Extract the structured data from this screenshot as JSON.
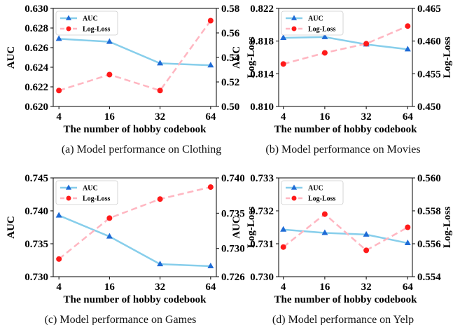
{
  "colors": {
    "auc": "#87ceeb",
    "auc_marker": "#1e6bd6",
    "logloss": "#ffb6c1",
    "logloss_marker": "#ff1a1a"
  },
  "chart_data": [
    {
      "type": "line",
      "caption": "(a)  Model performance on Clothing",
      "xlabel": "The number of hobby codebook",
      "ylabel_left": "AUC",
      "ylabel_right": "Log-Loss",
      "categories": [
        "4",
        "16",
        "32",
        "64"
      ],
      "ylim_left": [
        0.62,
        0.63
      ],
      "yticks_left": [
        "0.620",
        "0.622",
        "0.624",
        "0.626",
        "0.628",
        "0.630"
      ],
      "ylim_right": [
        0.5,
        0.58
      ],
      "yticks_right": [
        "0.50",
        "0.52",
        "0.54",
        "0.56",
        "0.58"
      ],
      "legend": [
        "AUC",
        "Log-Loss"
      ],
      "legend_position": "top-left",
      "series": [
        {
          "name": "AUC",
          "axis": "left",
          "values": [
            0.6269,
            0.6266,
            0.6244,
            0.6242
          ]
        },
        {
          "name": "Log-Loss",
          "axis": "right",
          "values": [
            0.513,
            0.526,
            0.513,
            0.57
          ]
        }
      ]
    },
    {
      "type": "line",
      "caption": "(b)  Model performance on Movies",
      "xlabel": "The number of hobby codebook",
      "ylabel_left": "AUC",
      "ylabel_right": "Log-Loss",
      "categories": [
        "4",
        "16",
        "32",
        "64"
      ],
      "ylim_left": [
        0.81,
        0.822
      ],
      "yticks_left": [
        "0.810",
        "0.814",
        "0.818",
        "0.822"
      ],
      "ylim_right": [
        0.45,
        0.465
      ],
      "yticks_right": [
        "0.450",
        "0.455",
        "0.460",
        "0.465"
      ],
      "legend": [
        "AUC",
        "Log-Loss"
      ],
      "legend_position": "top-left",
      "series": [
        {
          "name": "AUC",
          "axis": "left",
          "values": [
            0.8184,
            0.8185,
            0.8176,
            0.817
          ]
        },
        {
          "name": "Log-Loss",
          "axis": "right",
          "values": [
            0.4565,
            0.4582,
            0.4596,
            0.4623
          ]
        }
      ]
    },
    {
      "type": "line",
      "caption": "(c)  Model performance on Games",
      "xlabel": "The number of hobby codebook",
      "ylabel_left": "AUC",
      "ylabel_right": "Log-Loss",
      "categories": [
        "4",
        "16",
        "32",
        "64"
      ],
      "ylim_left": [
        0.73,
        0.745
      ],
      "yticks_left": [
        "0.730",
        "0.735",
        "0.740",
        "0.745"
      ],
      "ylim_right": [
        0.726,
        0.74
      ],
      "yticks_right": [
        "0.726",
        "0.730",
        "0.735",
        "0.740"
      ],
      "legend": [
        "AUC",
        "Log-Loss"
      ],
      "legend_position": "top-left",
      "series": [
        {
          "name": "AUC",
          "axis": "left",
          "values": [
            0.7393,
            0.7361,
            0.7319,
            0.7316
          ]
        },
        {
          "name": "Log-Loss",
          "axis": "right",
          "values": [
            0.7285,
            0.7343,
            0.737,
            0.7387
          ]
        }
      ]
    },
    {
      "type": "line",
      "caption": "(d)  Model performance on Yelp",
      "xlabel": "The number of hobby codebook",
      "ylabel_left": "AUC",
      "ylabel_right": "Log-Loss",
      "categories": [
        "4",
        "16",
        "32",
        "64"
      ],
      "ylim_left": [
        0.73,
        0.733
      ],
      "yticks_left": [
        "0.730",
        "0.731",
        "0.732",
        "0.733"
      ],
      "ylim_right": [
        0.554,
        0.56
      ],
      "yticks_right": [
        "0.554",
        "0.556",
        "0.558",
        "0.560"
      ],
      "legend": [
        "AUC",
        "Log-Loss"
      ],
      "legend_position": "top-left",
      "series": [
        {
          "name": "AUC",
          "axis": "left",
          "values": [
            0.73143,
            0.73133,
            0.73128,
            0.73102
          ]
        },
        {
          "name": "Log-Loss",
          "axis": "right",
          "values": [
            0.5558,
            0.5578,
            0.5556,
            0.557
          ]
        }
      ]
    }
  ]
}
